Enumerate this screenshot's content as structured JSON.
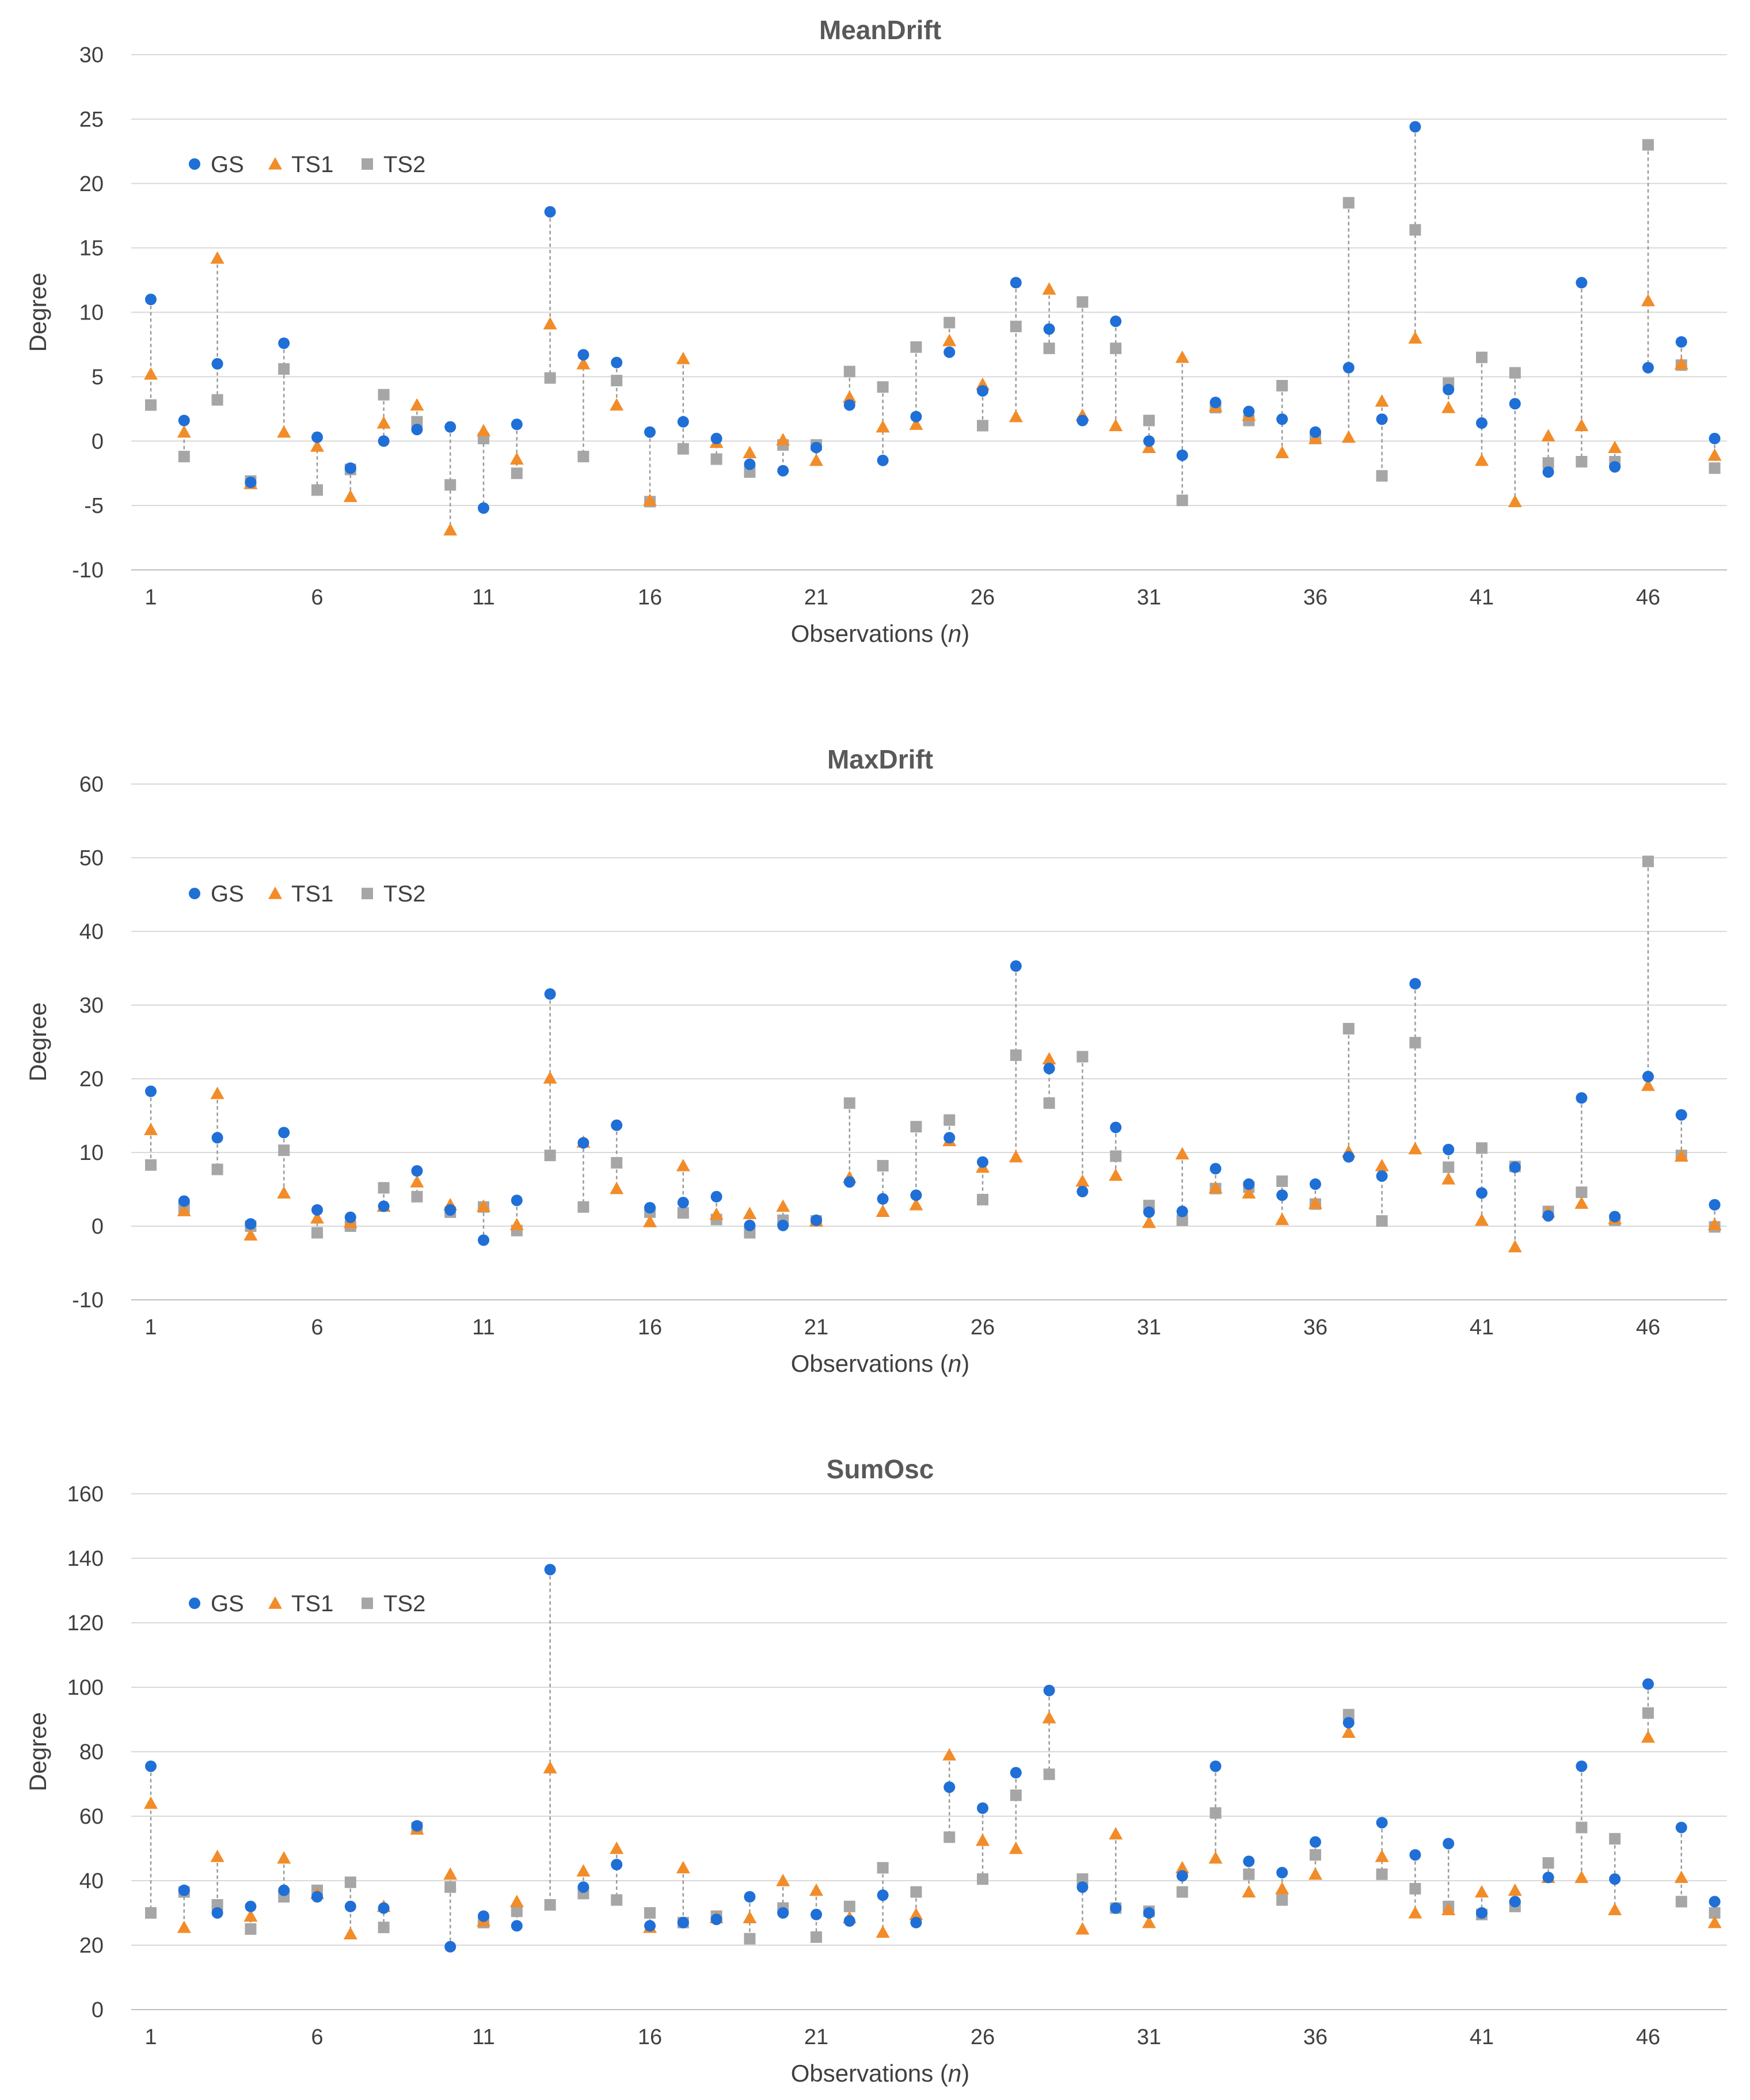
{
  "legend_colors": {
    "GS": "#1f6fd6",
    "TS1": "#f28c28",
    "TS2": "#a6a6a6"
  },
  "chart_data": [
    {
      "type": "scatter",
      "title": "MeanDrift",
      "xlabel_main": "Observations (",
      "xlabel_italic": "n",
      "xlabel_end": ")",
      "ylabel": "Degree",
      "ylim": [
        -10,
        30
      ],
      "ystep": 5,
      "xticks": [
        1,
        6,
        11,
        16,
        21,
        26,
        31,
        36,
        41,
        46
      ],
      "legend_position": "top-left",
      "grid": true,
      "series": [
        {
          "name": "GS",
          "marker": "circle",
          "values": [
            11.0,
            1.6,
            6.0,
            -3.2,
            7.6,
            0.3,
            -2.1,
            0.0,
            0.9,
            1.1,
            -5.2,
            1.3,
            17.8,
            6.7,
            6.1,
            0.7,
            1.5,
            0.2,
            -1.8,
            -2.3,
            -0.5,
            2.8,
            -1.5,
            1.9,
            6.9,
            3.9,
            12.3,
            8.7,
            1.6,
            9.3,
            0.0,
            -1.1,
            3.0,
            2.3,
            1.7,
            0.7,
            5.7,
            1.7,
            24.4,
            4.0,
            1.4,
            2.9,
            -2.4,
            12.3,
            -2.0,
            5.7,
            7.7,
            0.2
          ]
        },
        {
          "name": "TS1",
          "marker": "triangle",
          "values": [
            5.2,
            0.7,
            14.2,
            -3.3,
            0.7,
            -0.4,
            -4.3,
            1.4,
            2.8,
            -6.9,
            0.8,
            -1.4,
            9.1,
            6.0,
            2.8,
            -4.6,
            6.4,
            -0.1,
            -0.9,
            0.1,
            -1.5,
            3.4,
            1.1,
            1.3,
            7.8,
            4.4,
            1.9,
            11.8,
            2.0,
            1.2,
            -0.5,
            6.5,
            2.7,
            2.0,
            -0.9,
            0.2,
            0.3,
            3.1,
            8.0,
            2.6,
            -1.5,
            -4.7,
            0.4,
            1.2,
            -0.5,
            10.9,
            6.0,
            -1.1
          ]
        },
        {
          "name": "TS2",
          "marker": "square",
          "values": [
            2.8,
            -1.2,
            3.2,
            -3.1,
            5.6,
            -3.8,
            -2.2,
            3.6,
            1.5,
            -3.4,
            0.2,
            -2.5,
            4.9,
            -1.2,
            4.7,
            -4.7,
            -0.6,
            -1.4,
            -2.4,
            -0.3,
            -0.3,
            5.4,
            4.2,
            7.3,
            9.2,
            1.2,
            8.9,
            7.2,
            10.8,
            7.2,
            1.6,
            -4.6,
            2.6,
            1.6,
            4.3,
            0.2,
            18.5,
            -2.7,
            16.4,
            4.5,
            6.5,
            5.3,
            -1.7,
            -1.6,
            -1.6,
            23.0,
            5.9,
            -2.1
          ]
        }
      ]
    },
    {
      "type": "scatter",
      "title": "MaxDrift",
      "xlabel_main": "Observations (",
      "xlabel_italic": "n",
      "xlabel_end": ")",
      "ylabel": "Degree",
      "ylim": [
        -10,
        60
      ],
      "ystep": 10,
      "xticks": [
        1,
        6,
        11,
        16,
        21,
        26,
        31,
        36,
        41,
        46
      ],
      "legend_position": "top-left",
      "grid": true,
      "series": [
        {
          "name": "GS",
          "marker": "circle",
          "values": [
            18.3,
            3.4,
            12.0,
            0.3,
            12.7,
            2.2,
            1.2,
            2.7,
            7.5,
            2.2,
            -1.9,
            3.5,
            31.5,
            11.3,
            13.7,
            2.5,
            3.2,
            4.0,
            0.1,
            0.1,
            0.8,
            6.0,
            3.7,
            4.2,
            12.0,
            8.7,
            35.3,
            21.4,
            4.7,
            13.4,
            1.9,
            2.0,
            7.8,
            5.7,
            4.2,
            5.7,
            9.4,
            6.8,
            32.9,
            10.4,
            4.5,
            8.0,
            1.4,
            17.4,
            1.3,
            20.3,
            15.1,
            2.9
          ]
        },
        {
          "name": "TS1",
          "marker": "triangle",
          "values": [
            13.1,
            2.1,
            18.0,
            -1.2,
            4.5,
            1.1,
            0.5,
            2.7,
            6.0,
            2.9,
            2.7,
            0.2,
            20.1,
            11.4,
            5.1,
            0.6,
            8.2,
            1.6,
            1.7,
            2.7,
            0.7,
            6.6,
            2.0,
            2.9,
            11.6,
            8.0,
            9.4,
            22.7,
            6.1,
            6.9,
            0.5,
            9.8,
            5.2,
            4.5,
            0.9,
            3.1,
            10.1,
            8.2,
            10.5,
            6.4,
            0.8,
            -2.8,
            1.9,
            3.1,
            1.0,
            19.1,
            9.5,
            0.2
          ]
        },
        {
          "name": "TS2",
          "marker": "square",
          "values": [
            8.3,
            2.5,
            7.7,
            0.0,
            10.3,
            -0.9,
            0.0,
            5.2,
            4.0,
            1.9,
            2.6,
            -0.6,
            9.6,
            2.6,
            8.6,
            1.9,
            1.8,
            0.9,
            -0.9,
            0.8,
            0.7,
            16.7,
            8.2,
            13.5,
            14.4,
            3.6,
            23.2,
            16.7,
            23.0,
            9.5,
            2.8,
            0.8,
            5.1,
            5.3,
            6.1,
            3.0,
            26.8,
            0.7,
            24.9,
            8.0,
            10.6,
            8.1,
            2.0,
            4.6,
            0.8,
            49.5,
            9.6,
            -0.1
          ]
        }
      ]
    },
    {
      "type": "scatter",
      "title": "SumOsc",
      "xlabel_main": "Observations (",
      "xlabel_italic": "n",
      "xlabel_end": ")",
      "ylabel": "Degree",
      "ylim": [
        0,
        160
      ],
      "ystep": 20,
      "xticks": [
        1,
        6,
        11,
        16,
        21,
        26,
        31,
        36,
        41,
        46
      ],
      "legend_position": "top-left",
      "grid": true,
      "series": [
        {
          "name": "GS",
          "marker": "circle",
          "values": [
            75.5,
            37.0,
            30.0,
            32.0,
            37.0,
            35.0,
            32.0,
            31.5,
            57.0,
            19.5,
            29.0,
            26.0,
            136.5,
            38.0,
            45.0,
            26.0,
            27.0,
            28.0,
            35.0,
            30.0,
            29.5,
            27.5,
            35.5,
            27.0,
            69.0,
            62.5,
            73.5,
            99.0,
            38.0,
            31.5,
            30.0,
            41.5,
            75.5,
            46.0,
            42.5,
            52.0,
            89.0,
            58.0,
            48.0,
            51.5,
            30.0,
            33.5,
            41.0,
            75.5,
            40.5,
            101.0,
            56.5,
            33.5
          ]
        },
        {
          "name": "TS1",
          "marker": "triangle",
          "values": [
            64.0,
            25.5,
            47.5,
            29.0,
            47.0,
            36.0,
            23.5,
            32.0,
            56.0,
            42.0,
            27.5,
            33.5,
            75.0,
            43.0,
            50.0,
            25.5,
            44.0,
            28.5,
            28.5,
            40.0,
            37.0,
            28.5,
            24.0,
            29.5,
            79.0,
            52.5,
            50.0,
            90.5,
            25.0,
            54.5,
            27.0,
            44.0,
            47.0,
            36.5,
            37.5,
            42.0,
            86.0,
            47.5,
            30.0,
            31.0,
            36.5,
            37.0,
            41.0,
            41.0,
            31.0,
            84.5,
            41.0,
            27.0
          ]
        },
        {
          "name": "TS2",
          "marker": "square",
          "values": [
            30.0,
            36.5,
            32.5,
            25.0,
            35.0,
            37.0,
            39.5,
            25.5,
            56.5,
            38.0,
            27.0,
            30.5,
            32.5,
            36.0,
            34.0,
            30.0,
            27.0,
            29.0,
            22.0,
            31.5,
            22.5,
            32.0,
            44.0,
            36.5,
            53.5,
            40.5,
            66.5,
            73.0,
            40.5,
            31.5,
            30.5,
            36.5,
            61.0,
            42.0,
            34.0,
            48.0,
            91.5,
            42.0,
            37.5,
            32.0,
            29.5,
            32.0,
            45.5,
            56.5,
            53.0,
            92.0,
            33.5,
            30.0
          ]
        }
      ]
    }
  ]
}
